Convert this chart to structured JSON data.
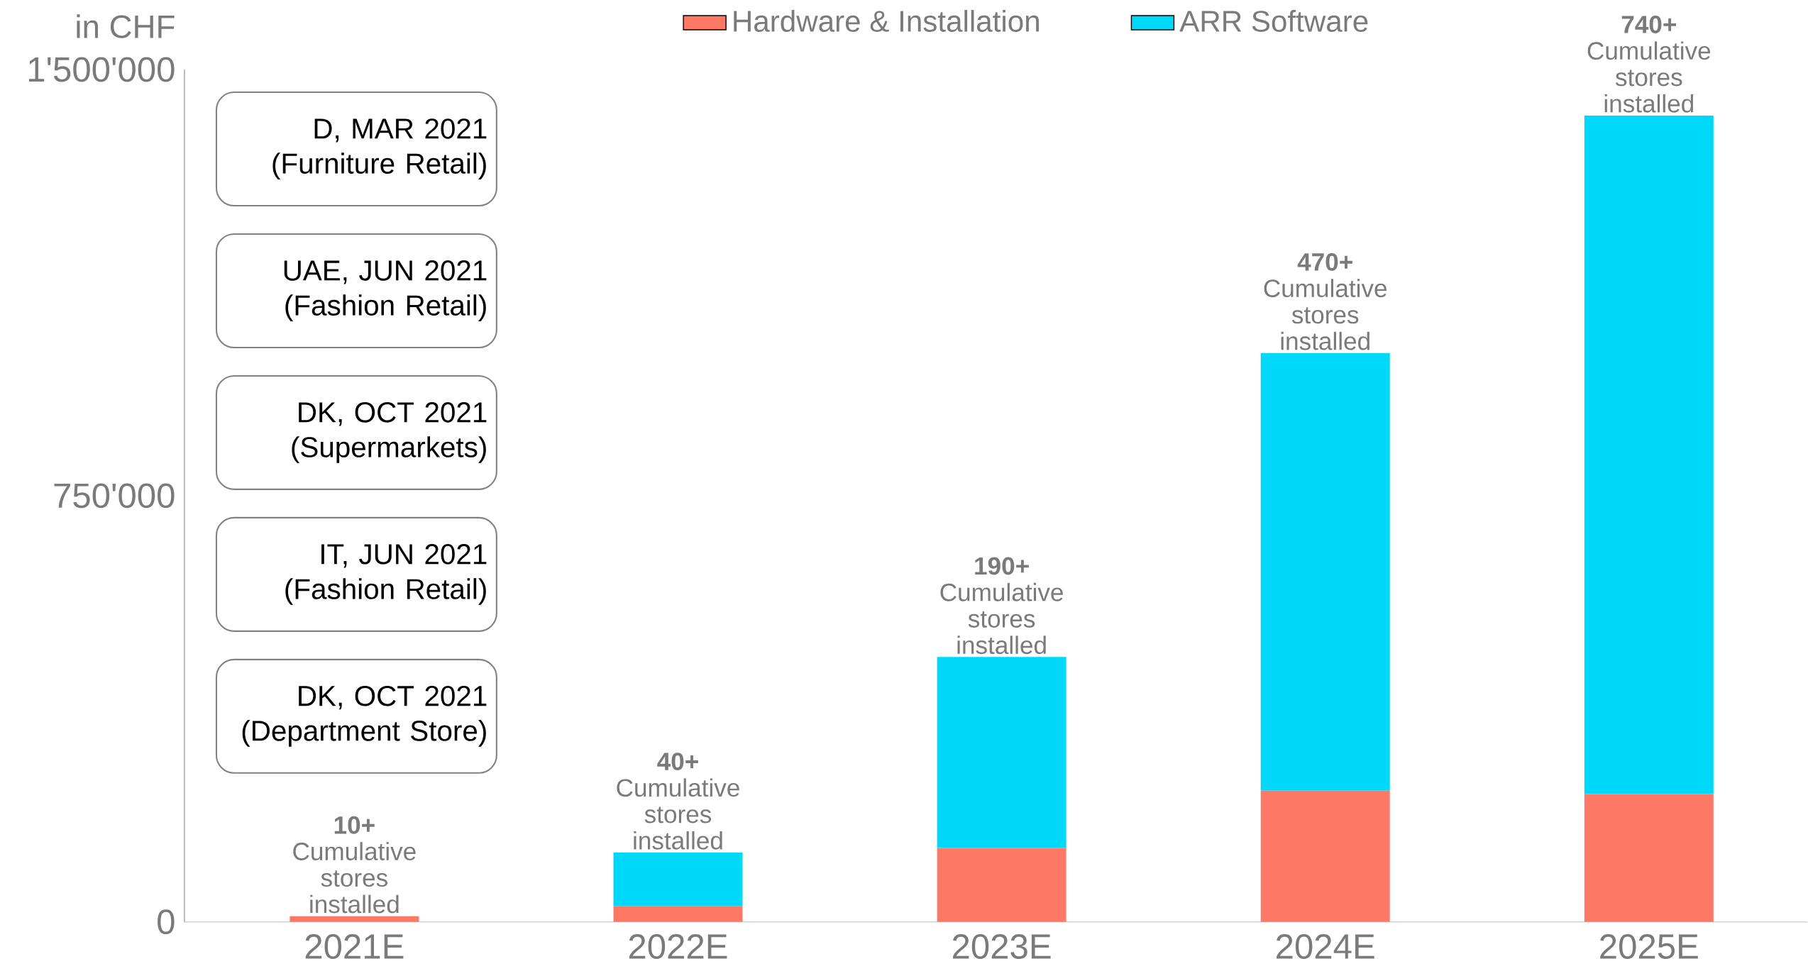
{
  "chart_data": {
    "type": "bar",
    "stacked": true,
    "ylabel": "in CHF",
    "legend": "top",
    "categories": [
      "2021E",
      "2022E",
      "2023E",
      "2024E",
      "2025E"
    ],
    "series": [
      {
        "name": "Hardware & Installation",
        "color": "#fe7866",
        "values": [
          10000,
          28000,
          130000,
          231000,
          225000
        ]
      },
      {
        "name": "ARR Software",
        "color": "#00d8fa",
        "values": [
          0,
          94000,
          336000,
          770000,
          1194000
        ]
      }
    ],
    "ylim": [
      0,
      1500000
    ],
    "yticks": [
      0,
      {
        "value": 750000,
        "label": "750'000"
      },
      {
        "value": 1500000,
        "label": "1'500'000"
      }
    ],
    "annotations": [
      {
        "text": "**10+** Cumulative stores installed",
        "x": "2021E",
        "y": 10000
      },
      {
        "text": "**40+** Cumulative stores installed",
        "x": "2022E",
        "y": 122000
      },
      {
        "text": "**190+** Cumulative stores installed",
        "x": "2023E",
        "y": 466000
      },
      {
        "text": "**470+** Cumulative stores installed",
        "x": "2024E",
        "y": 1001000
      },
      {
        "text": "**740+** Cumulative stores installed",
        "x": "2025E",
        "y": 1419000
      },
      "D, MAR 2021 (Furniture Retail)",
      "UAE, JUN 2021 (Fashion Retail)",
      "DK, OCT 2021 (Supermarkets)",
      "IT, JUN 2021 (Fashion Retail)",
      "DK, OCT 2021 (Department Store)"
    ]
  }
}
